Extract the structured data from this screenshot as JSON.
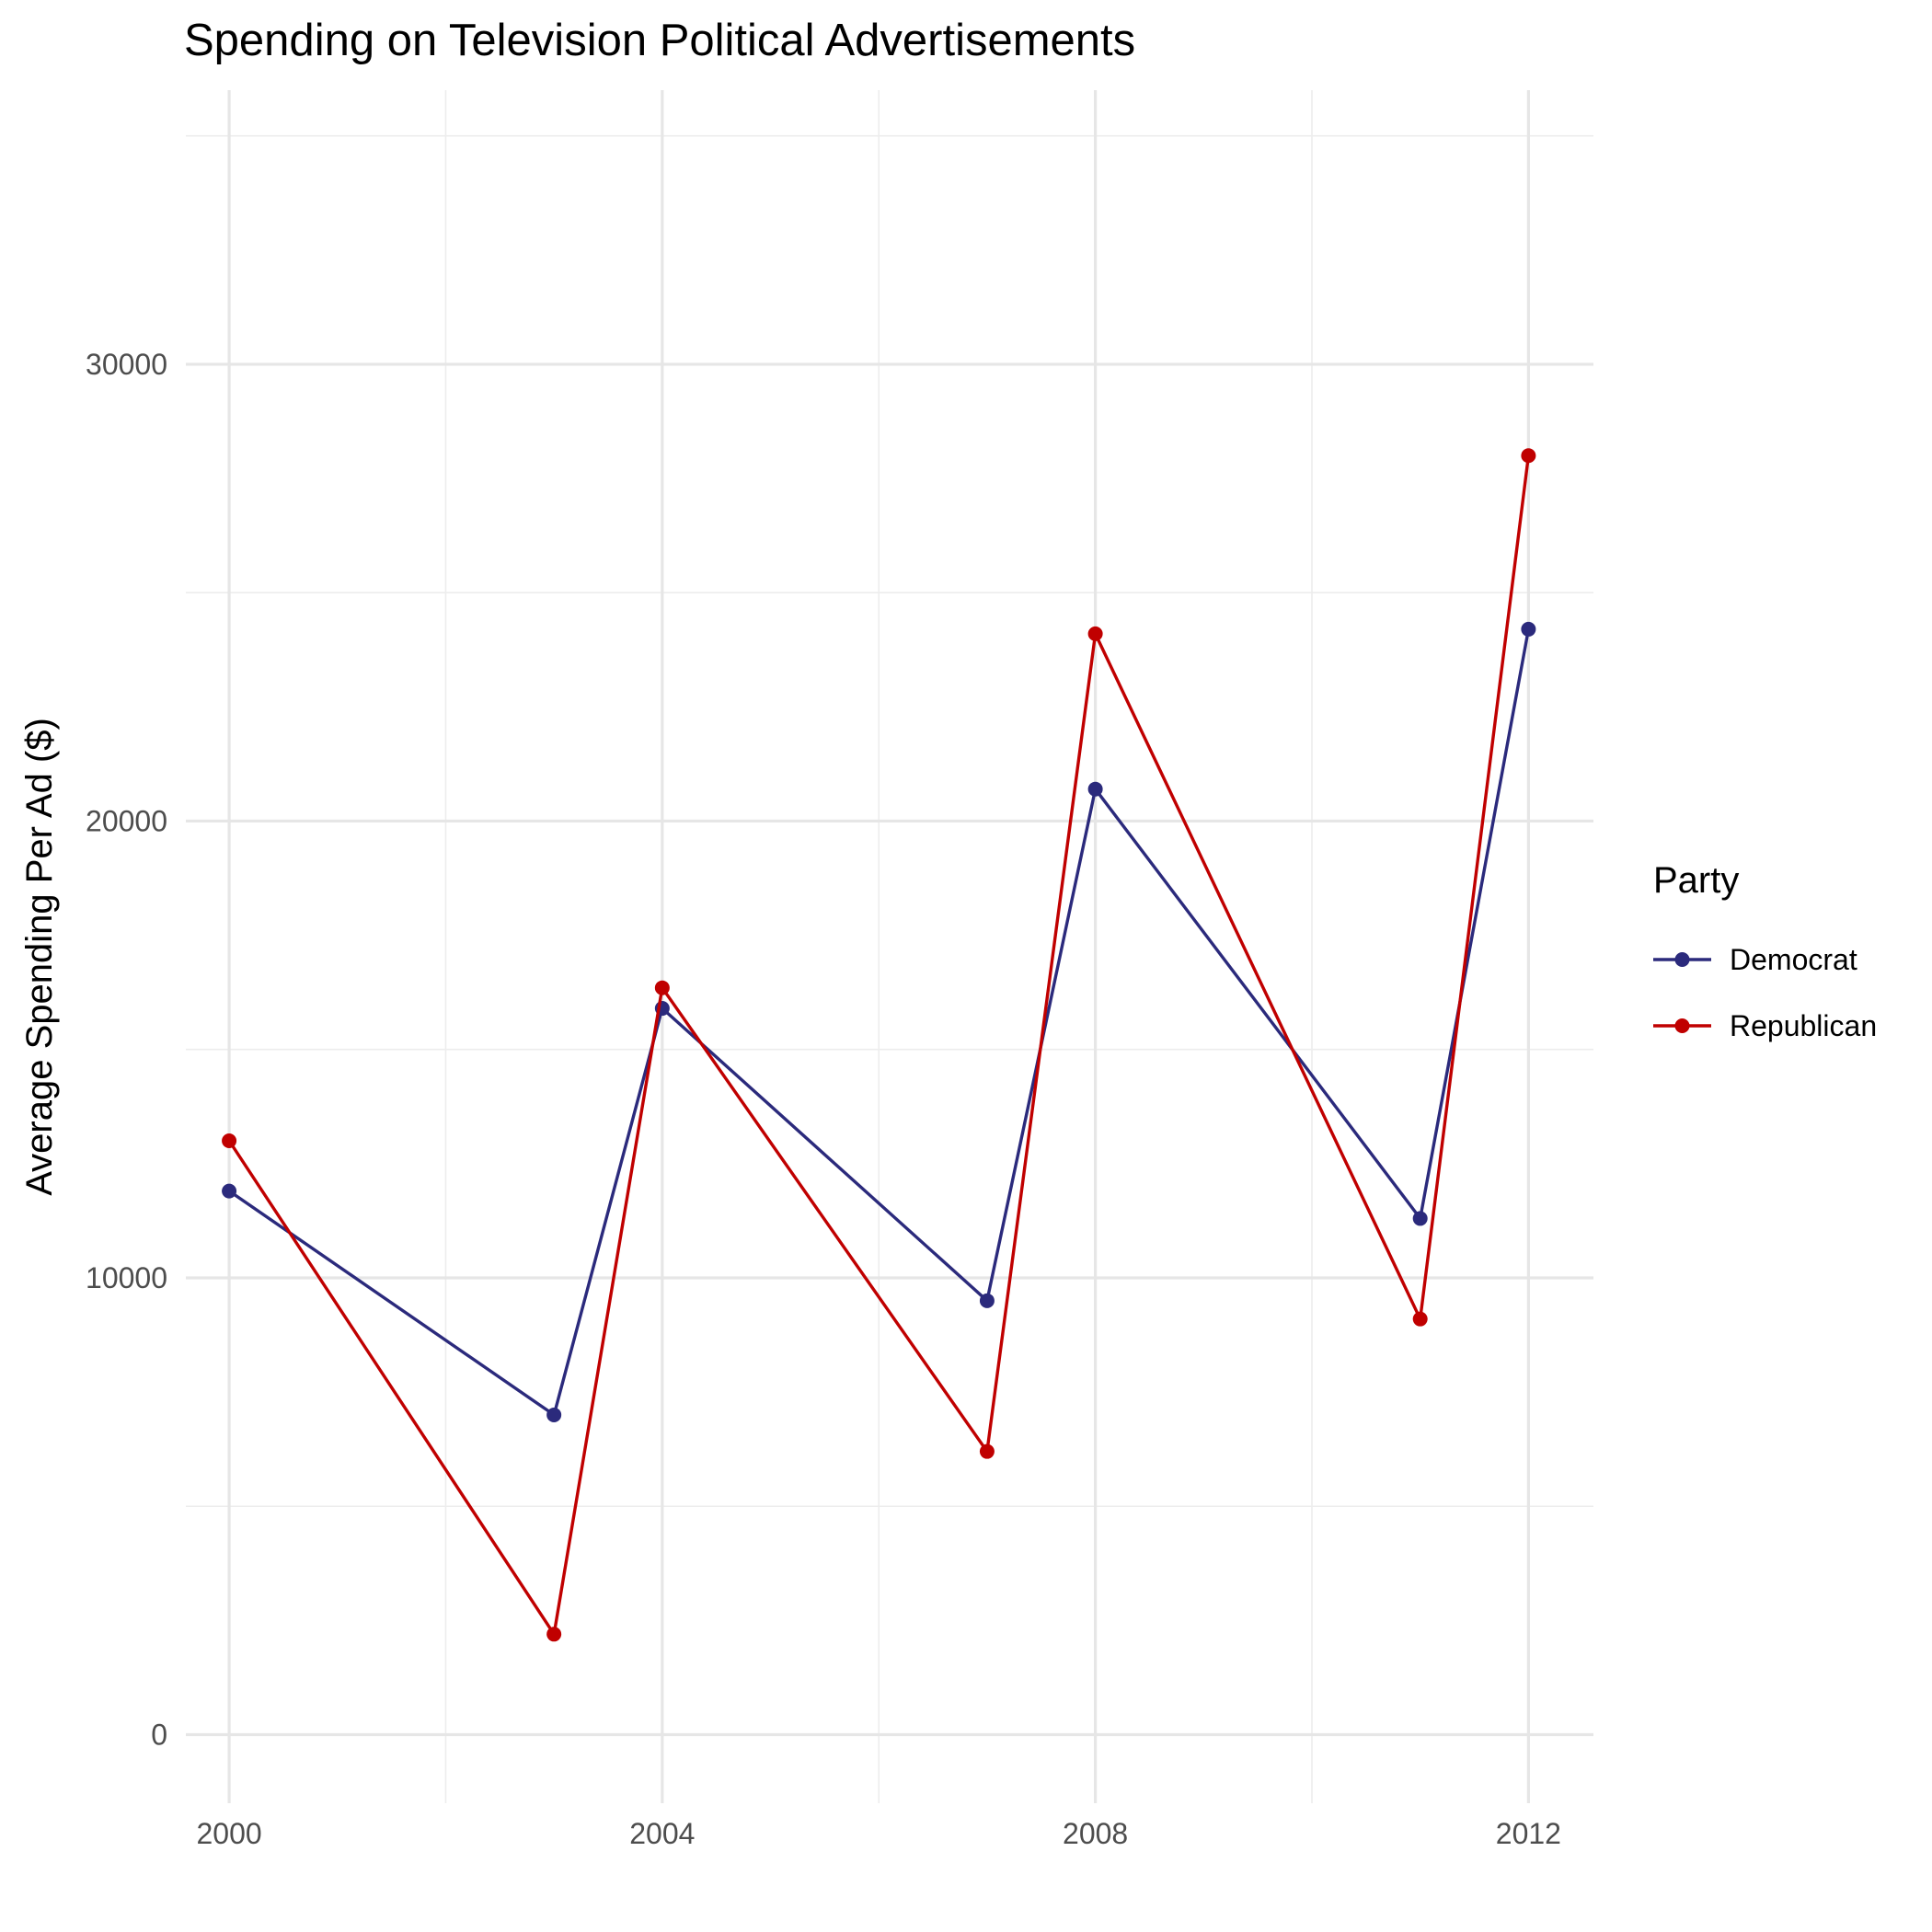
{
  "chart_data": {
    "type": "line",
    "title": "Spending on Television Political Advertisements",
    "xlabel": "",
    "ylabel": "Average Spending Per Ad ($)",
    "x": [
      2000,
      2003,
      2004,
      2007,
      2008,
      2011,
      2012
    ],
    "xlim": [
      1999.6,
      2012.6
    ],
    "ylim": [
      -1500,
      36000
    ],
    "x_ticks": [
      2000,
      2004,
      2008,
      2012
    ],
    "x_tick_labels": [
      "2000",
      "2004",
      "2008",
      "2012"
    ],
    "x_minor_ticks": [
      2002,
      2006,
      2010
    ],
    "y_ticks": [
      0,
      10000,
      20000,
      30000
    ],
    "y_tick_labels": [
      "0",
      "10000",
      "20000",
      "30000"
    ],
    "y_minor_ticks": [
      5000,
      15000,
      25000,
      35000
    ],
    "grid": true,
    "legend": {
      "title": "Party",
      "position": "right"
    },
    "series": [
      {
        "name": "Democrat",
        "color": "#2b2a7c",
        "values": [
          11900,
          7000,
          15900,
          9500,
          20700,
          11300,
          24200
        ]
      },
      {
        "name": "Republican",
        "color": "#c00000",
        "values": [
          13000,
          2200,
          16350,
          6200,
          24100,
          9100,
          28000
        ]
      }
    ]
  }
}
